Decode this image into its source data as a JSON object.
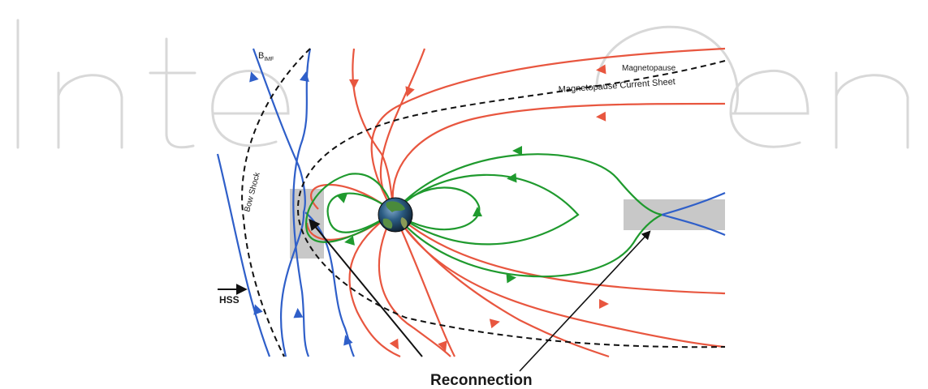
{
  "watermark": {
    "text": "IntechOpen",
    "color": "#d6d6d6"
  },
  "labels": {
    "imf": "B",
    "imf_sub": "IMF",
    "magnetopause": "Magnetopause",
    "current_sheet": "Magnetopause Current Sheet",
    "bow_shock": "Bow Shock",
    "hss": "HSS",
    "reconnection": "Reconnection"
  },
  "colors": {
    "imf_lines": "#2f5fc9",
    "open_lines": "#e8563f",
    "closed_lines": "#1f9a2e",
    "boundaries": "#111111",
    "reconnection_regions": "#c8c8c8",
    "earth_land": "#3f7a3a",
    "earth_ocean": "#1d3f66"
  }
}
